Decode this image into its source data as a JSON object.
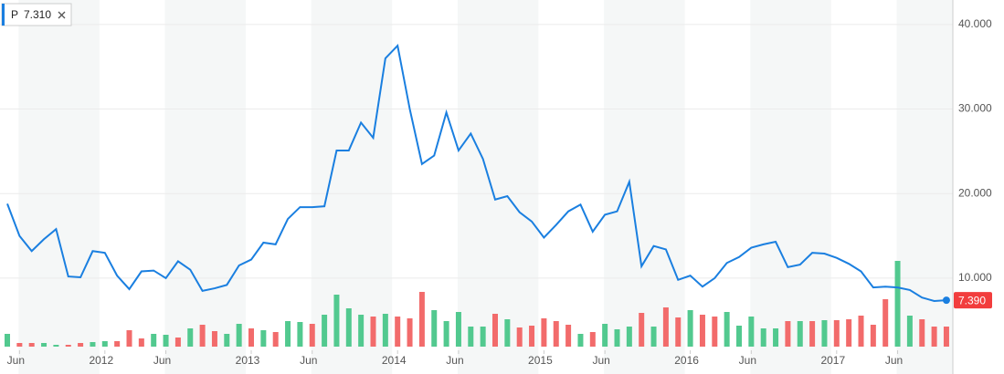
{
  "chart_data": {
    "type": "line",
    "ticker": "P",
    "legend_value": "7.310",
    "last_value_label": "7.390",
    "color": "#1a7fe0",
    "tag_color": "#f23d3d",
    "categories": [
      null,
      "Jun",
      null,
      null,
      null,
      null,
      null,
      null,
      "2012",
      null,
      null,
      null,
      null,
      "Jun",
      null,
      null,
      null,
      null,
      null,
      null,
      "2013",
      null,
      null,
      null,
      null,
      "Jun",
      null,
      null,
      null,
      null,
      null,
      null,
      "2014",
      null,
      null,
      null,
      null,
      "Jun",
      null,
      null,
      null,
      null,
      null,
      null,
      "2015",
      null,
      null,
      null,
      null,
      "Jun",
      null,
      null,
      null,
      null,
      null,
      null,
      "2016",
      null,
      null,
      null,
      null,
      "Jun",
      null,
      null,
      null,
      null,
      null,
      null,
      "2017",
      null,
      null,
      null,
      null,
      "Jun",
      null,
      null,
      null,
      null
    ],
    "values": [
      18.8,
      15.0,
      13.2,
      14.6,
      15.8,
      10.2,
      10.1,
      13.2,
      13.0,
      10.3,
      8.7,
      10.8,
      10.9,
      10.0,
      12.0,
      11.0,
      8.5,
      8.8,
      9.2,
      11.5,
      12.2,
      14.2,
      14.0,
      17.0,
      18.4,
      18.4,
      18.5,
      25.1,
      25.1,
      28.4,
      26.6,
      36.0,
      37.5,
      30.0,
      23.5,
      24.5,
      29.6,
      25.1,
      27.1,
      24.1,
      19.3,
      19.7,
      17.8,
      16.7,
      14.8,
      16.3,
      17.9,
      18.7,
      15.5,
      17.5,
      17.9,
      21.4,
      11.4,
      13.8,
      13.4,
      9.8,
      10.3,
      9.0,
      10.0,
      11.8,
      12.5,
      13.6,
      14.0,
      14.3,
      11.3,
      11.6,
      13.0,
      12.9,
      12.4,
      11.7,
      10.8,
      8.9,
      9.0,
      8.9,
      8.6,
      7.7,
      7.3,
      7.39
    ],
    "volume": [
      14,
      4,
      4,
      4,
      2,
      2,
      4,
      5,
      6,
      6,
      18,
      9,
      14,
      13,
      10,
      20,
      24,
      17,
      14,
      25,
      20,
      18,
      16,
      28,
      27,
      25,
      35,
      57,
      42,
      35,
      33,
      36,
      33,
      31,
      60,
      40,
      28,
      38,
      22,
      22,
      36,
      30,
      21,
      23,
      31,
      28,
      24,
      14,
      16,
      25,
      19,
      22,
      37,
      22,
      43,
      32,
      40,
      35,
      33,
      38,
      23,
      33,
      20,
      20,
      28,
      28,
      28,
      29,
      29,
      30,
      34,
      24,
      52,
      94,
      34,
      30,
      22,
      22
    ],
    "volume_up": [
      true,
      false,
      false,
      true,
      true,
      false,
      false,
      true,
      true,
      false,
      false,
      false,
      true,
      true,
      false,
      true,
      false,
      false,
      true,
      true,
      false,
      true,
      false,
      true,
      true,
      false,
      true,
      true,
      true,
      true,
      false,
      true,
      false,
      false,
      false,
      true,
      true,
      true,
      true,
      true,
      false,
      true,
      false,
      false,
      false,
      false,
      false,
      true,
      false,
      true,
      true,
      true,
      false,
      true,
      false,
      false,
      true,
      false,
      false,
      true,
      true,
      true,
      true,
      true,
      false,
      true,
      false,
      true,
      false,
      false,
      false,
      false,
      false,
      true,
      true,
      false,
      false,
      false
    ],
    "volume_lim": [
      0,
      100
    ],
    "up_color": "#52c98f",
    "down_color": "#f26b6b",
    "ylim": [
      1.9,
      42.9
    ],
    "yticks": [
      {
        "value": 10,
        "label": "10.000"
      },
      {
        "value": 20,
        "label": "20.000"
      },
      {
        "value": 30,
        "label": "30.000"
      },
      {
        "value": 40,
        "label": "40.000"
      }
    ],
    "grid": true
  }
}
